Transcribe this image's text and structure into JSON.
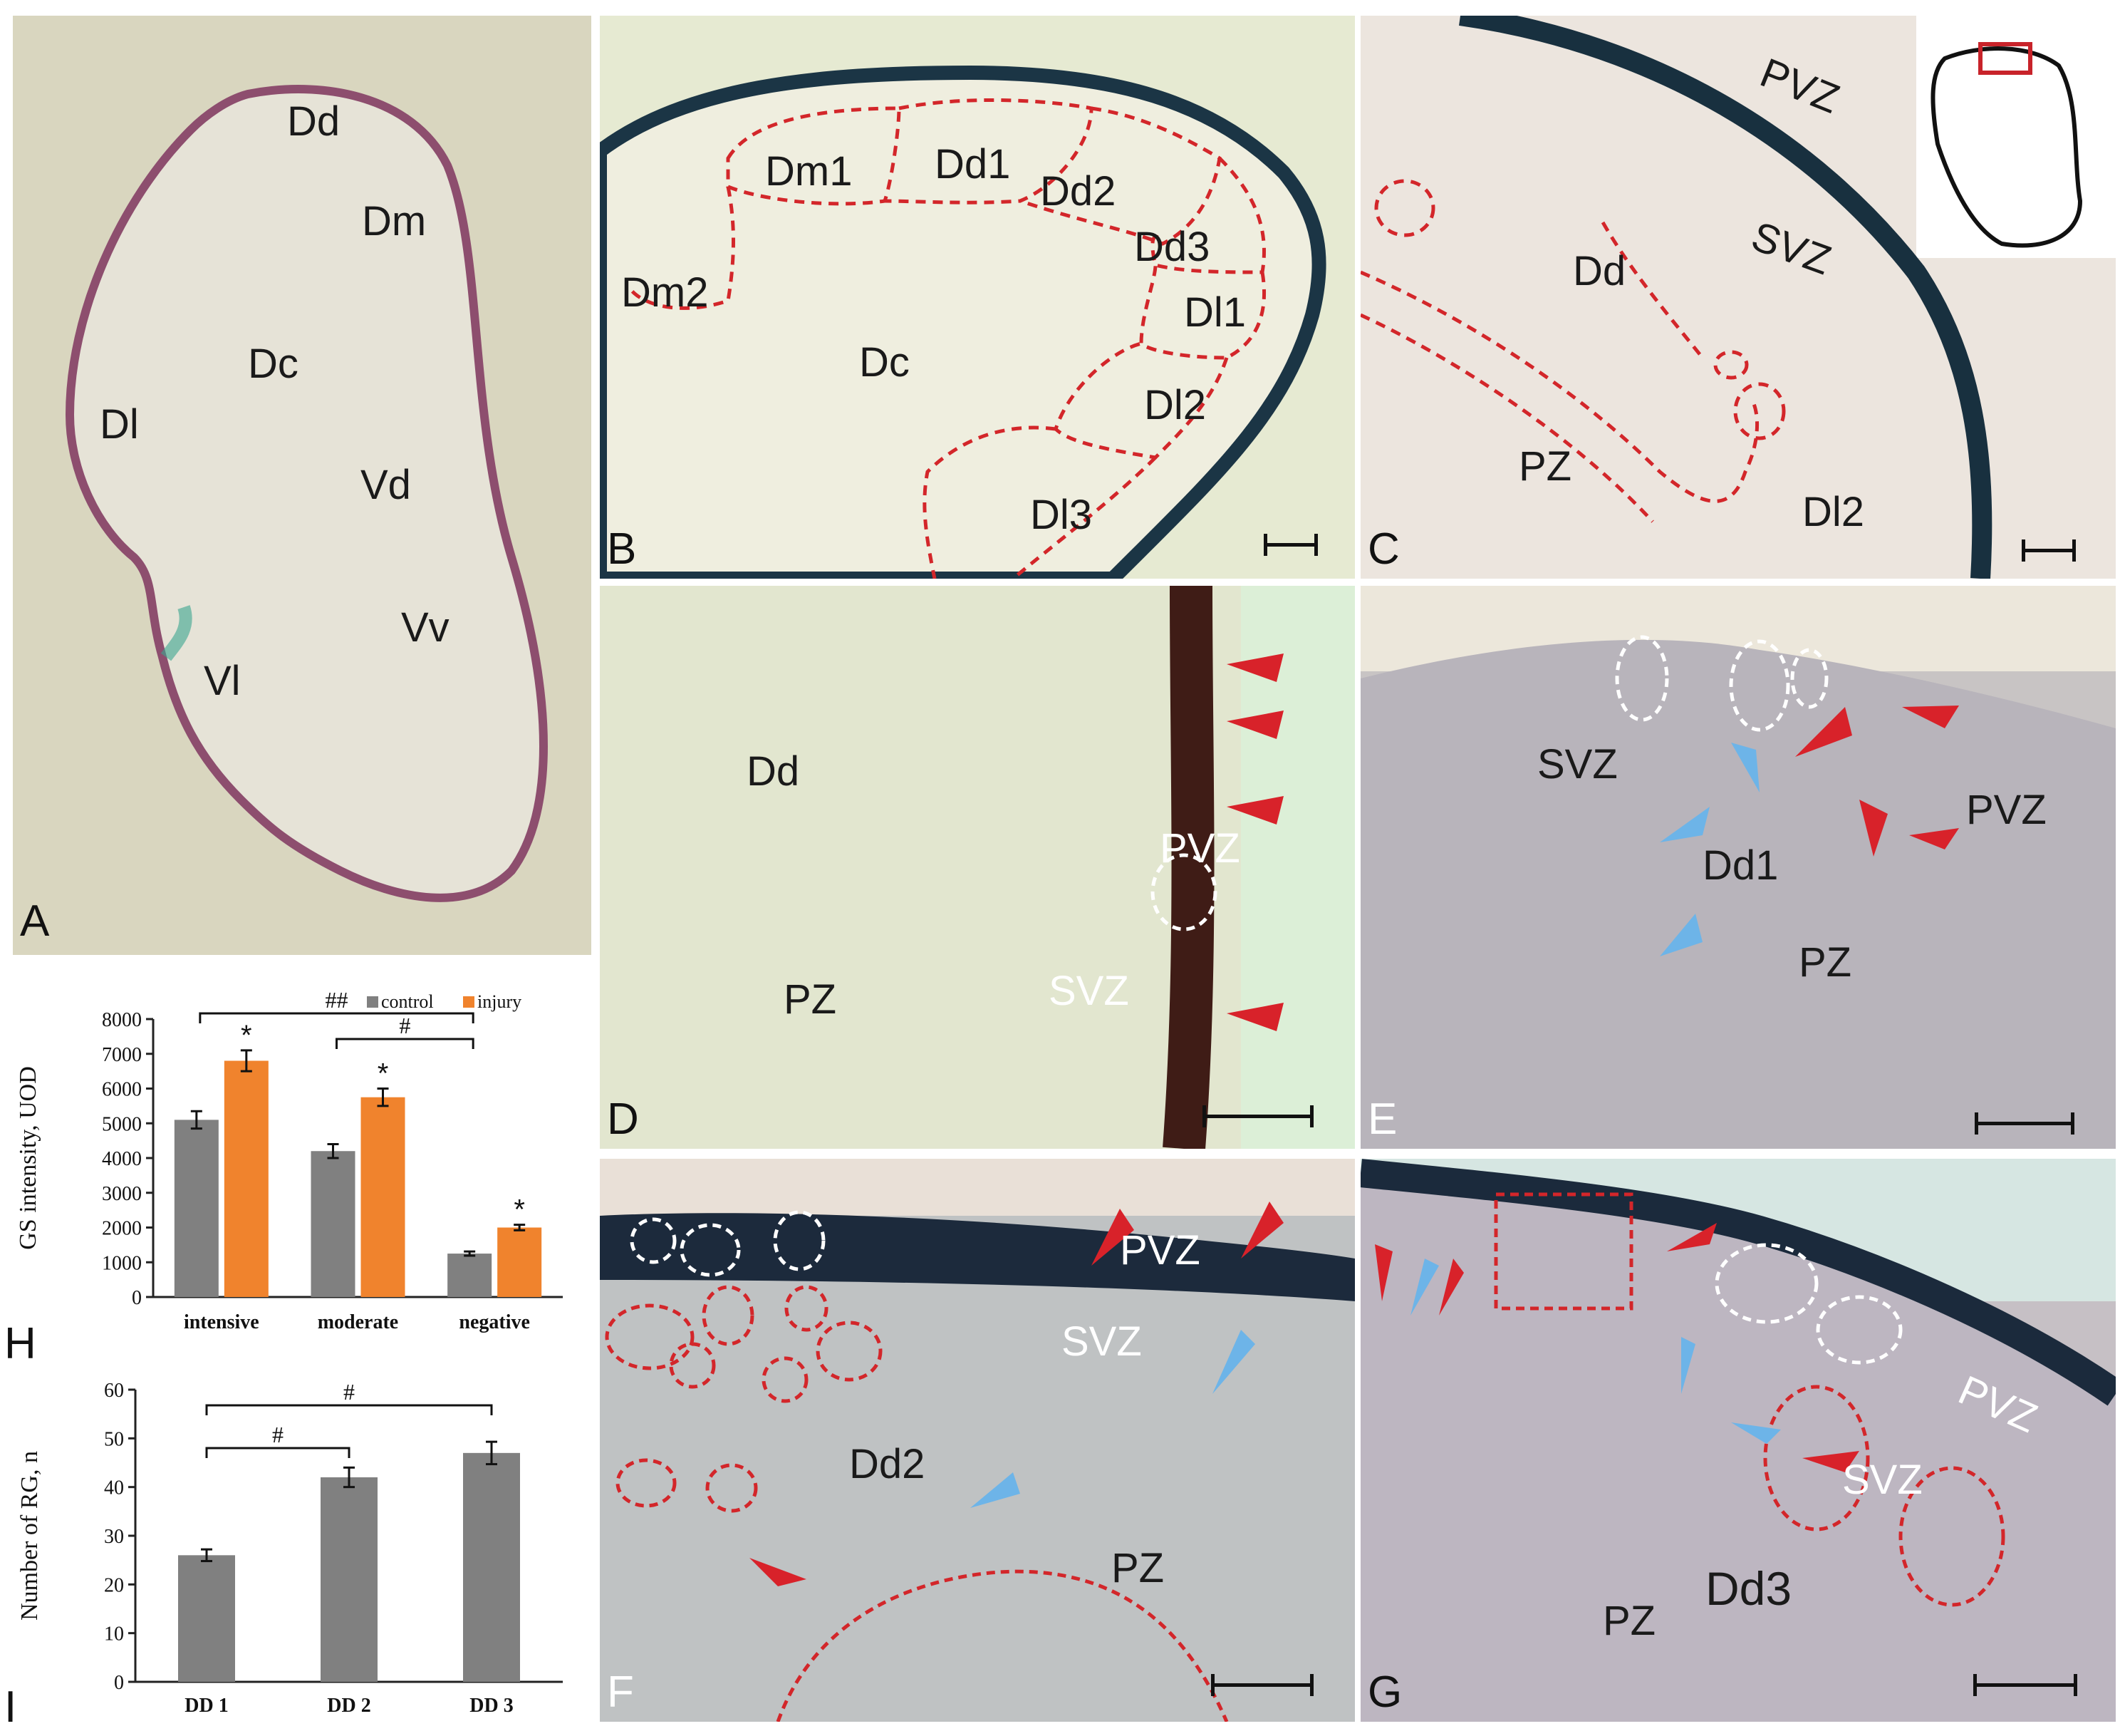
{
  "panels": {
    "A": {
      "letter": "A",
      "regions": [
        "Dd",
        "Dm",
        "Dc",
        "Dl",
        "Vd",
        "Vv",
        "Vl"
      ]
    },
    "B": {
      "letter": "B",
      "regions": [
        "Dm1",
        "Dd1",
        "Dd2",
        "Dd3",
        "Dm2",
        "Dl1",
        "Dc",
        "Dl2",
        "Dl3"
      ]
    },
    "C": {
      "letter": "C",
      "regions": [
        "PVZ",
        "SVZ",
        "Dd",
        "PZ",
        "Dl2"
      ]
    },
    "D": {
      "letter": "D",
      "regions": [
        "Dd",
        "PVZ",
        "PZ",
        "SVZ"
      ]
    },
    "E": {
      "letter": "E",
      "regions": [
        "SVZ",
        "PVZ",
        "Dd1",
        "PZ"
      ]
    },
    "F": {
      "letter": "F",
      "regions": [
        "PVZ",
        "SVZ",
        "Dd2",
        "PZ"
      ]
    },
    "G": {
      "letter": "G",
      "regions": [
        "PVZ",
        "SVZ",
        "PZ",
        "Dd3"
      ]
    }
  },
  "chart_data": [
    {
      "panel": "H",
      "type": "bar",
      "ylabel": "GS intensity, UOD",
      "ylim": [
        0,
        8000
      ],
      "yticks": [
        "0",
        "1000",
        "2000",
        "3000",
        "4000",
        "5000",
        "6000",
        "7000",
        "8000"
      ],
      "categories": [
        "intensive",
        "moderate",
        "negative"
      ],
      "series": [
        {
          "name": "control",
          "values": [
            5100,
            4200,
            1250
          ],
          "errors": [
            250,
            200,
            60
          ],
          "color": "#808080"
        },
        {
          "name": "injury",
          "values": [
            6800,
            5750,
            2000
          ],
          "errors": [
            300,
            250,
            80
          ],
          "color": "#f0832d"
        }
      ],
      "annotations": {
        "star": "*",
        "sig_all": "##",
        "sig_moderate": "#"
      },
      "legend": "top-right"
    },
    {
      "panel": "I",
      "type": "bar",
      "ylabel": "Number of RG, n",
      "ylim": [
        0,
        60
      ],
      "yticks": [
        "0",
        "10",
        "20",
        "30",
        "40",
        "50",
        "60"
      ],
      "categories": [
        "DD 1",
        "DD 2",
        "DD 3"
      ],
      "series": [
        {
          "values": [
            26,
            42,
            47
          ],
          "errors": [
            1.2,
            2,
            2.3
          ],
          "color": "#808080"
        }
      ],
      "annotations": {
        "sig1": "#",
        "sig2": "#"
      }
    }
  ],
  "chart_letters": {
    "H": "H",
    "I": "I"
  }
}
